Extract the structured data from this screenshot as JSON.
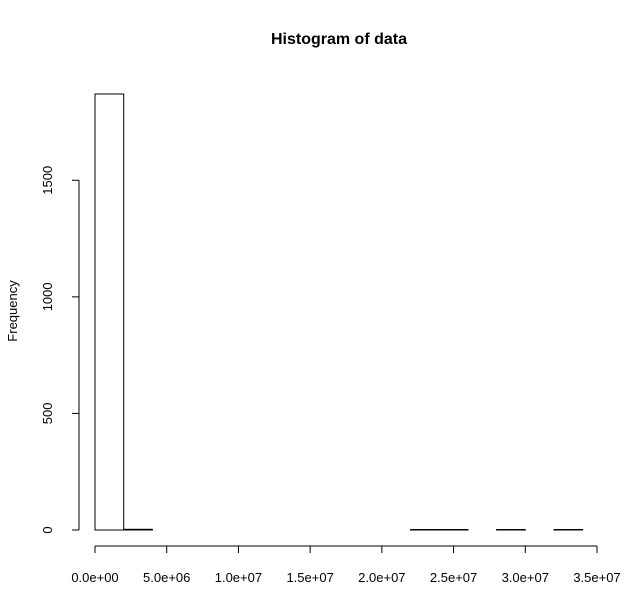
{
  "chart_data": {
    "type": "histogram",
    "title": "Histogram of data",
    "y_label": "Frequency",
    "bins": [
      0,
      2000000,
      4000000,
      6000000,
      8000000,
      10000000,
      12000000,
      14000000,
      16000000,
      18000000,
      20000000,
      22000000,
      24000000,
      26000000,
      28000000,
      30000000,
      32000000,
      34000000
    ],
    "counts": [
      1870,
      3,
      0,
      0,
      0,
      0,
      0,
      0,
      0,
      0,
      0,
      2,
      2,
      0,
      2,
      0,
      2
    ],
    "color": "#ffffff",
    "xlim": [
      0,
      35000000
    ],
    "xticks": [
      {
        "value": 0,
        "label": "0.0e+00"
      },
      {
        "value": 5000000,
        "label": "5.0e+06"
      },
      {
        "value": 10000000,
        "label": "1.0e+07"
      },
      {
        "value": 15000000,
        "label": "1.5e+07"
      },
      {
        "value": 20000000,
        "label": "2.0e+07"
      },
      {
        "value": 25000000,
        "label": "2.5e+07"
      },
      {
        "value": 30000000,
        "label": "3.0e+07"
      },
      {
        "value": 35000000,
        "label": "3.5e+07"
      }
    ],
    "ylim": [
      0,
      1900
    ],
    "yticks": [
      0,
      500,
      1000,
      1500
    ]
  }
}
